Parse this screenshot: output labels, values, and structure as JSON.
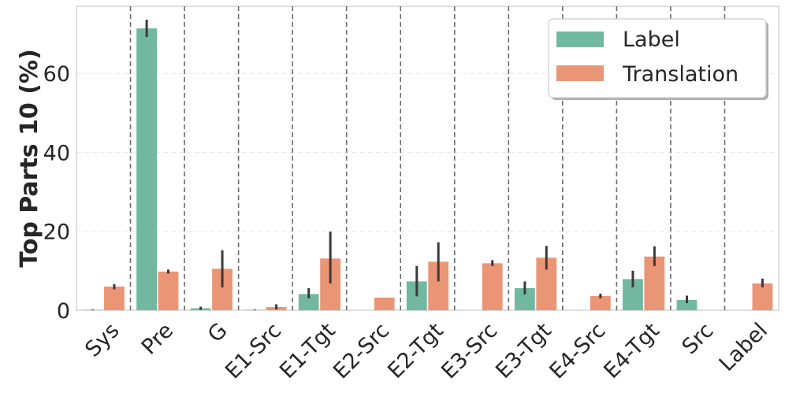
{
  "chart_data": {
    "type": "bar",
    "ylabel": "Top Parts 10 (%)",
    "xlabel": "",
    "ylim": [
      0,
      77
    ],
    "yticks": [
      0,
      20,
      40,
      60
    ],
    "grid": true,
    "legend_position": "top-right",
    "categories": [
      "Sys",
      "Pre",
      "G",
      "E1-Src",
      "E1-Tgt",
      "E2-Src",
      "E2-Tgt",
      "E3-Src",
      "E3-Tgt",
      "E4-Src",
      "E4-Tgt",
      "Src",
      "Label"
    ],
    "series": [
      {
        "name": "Label",
        "color": "#72b8a0",
        "values": [
          0.1,
          71.4,
          0.5,
          0.1,
          4.1,
          0,
          7.3,
          0,
          5.6,
          0,
          7.9,
          2.6,
          0
        ],
        "err_low": [
          0,
          69.2,
          0.1,
          0,
          3.0,
          0,
          3.5,
          0,
          4.0,
          0,
          5.8,
          1.8,
          0
        ],
        "err_high": [
          0.2,
          73.6,
          0.9,
          0.2,
          5.6,
          0,
          11.2,
          0,
          7.3,
          0,
          10.0,
          3.7,
          0
        ]
      },
      {
        "name": "Translation",
        "color": "#ea9576",
        "values": [
          6.0,
          9.8,
          10.5,
          0.8,
          13.1,
          3.2,
          12.3,
          11.9,
          13.3,
          3.6,
          13.6,
          0,
          6.8
        ],
        "err_low": [
          5.3,
          9.3,
          5.8,
          0.2,
          6.8,
          3.2,
          7.3,
          11.2,
          10.3,
          3.0,
          11.2,
          0,
          5.8
        ],
        "err_high": [
          6.6,
          10.3,
          15.2,
          1.5,
          19.9,
          3.2,
          17.2,
          12.7,
          16.3,
          4.2,
          16.2,
          0,
          8.0
        ]
      }
    ]
  }
}
